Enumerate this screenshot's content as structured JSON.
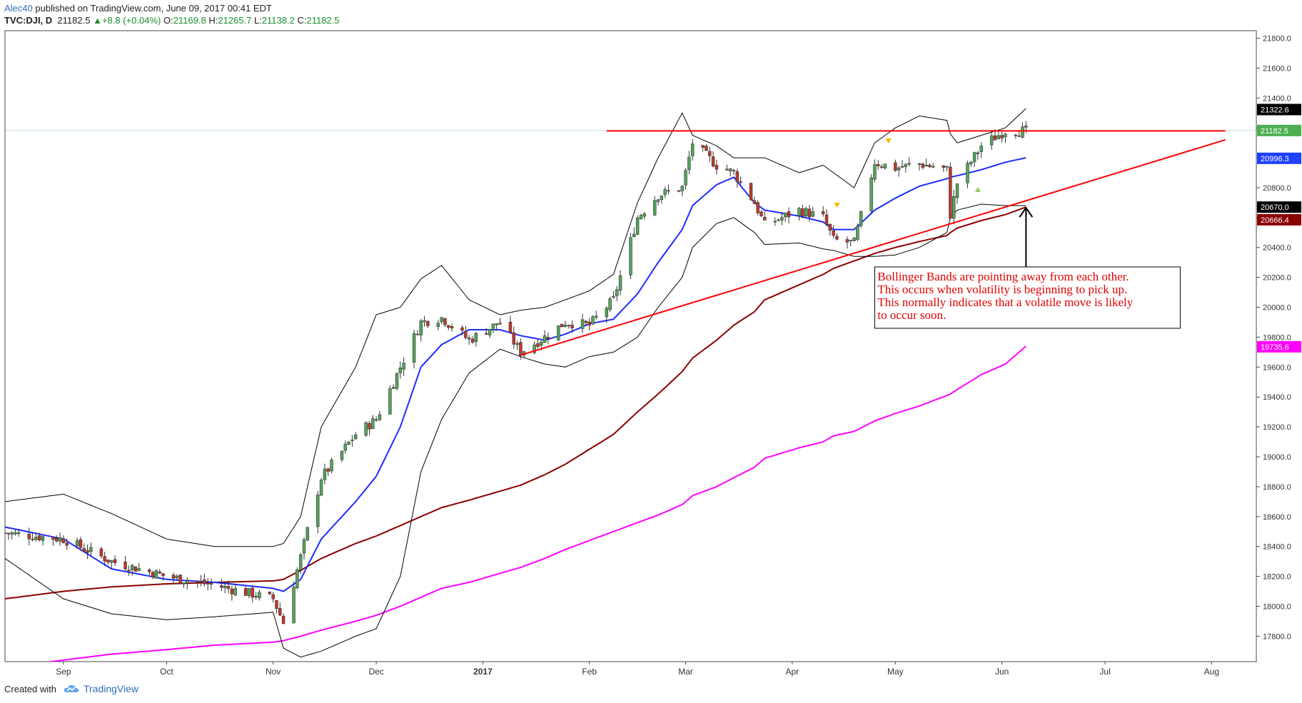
{
  "header": {
    "user": "Alec40",
    "published": "published on TradingView.com, June 09, 2017 00:41 EDT",
    "symbol": "TVC:DJI, D",
    "last": "21182.5",
    "arrow": "▲",
    "change": "+8.8 (+0.04%)",
    "o_label": "O:",
    "o": "21169.8",
    "h_label": "H:",
    "h": "21265.7",
    "l_label": "L:",
    "l": "21138.2",
    "c_label": "C:",
    "c": "21182.5"
  },
  "footer": {
    "created": "Created with",
    "brand": "TradingView"
  },
  "chart_data": {
    "type": "candlestick",
    "y_axis": {
      "min": 17630,
      "max": 21850,
      "ticks": [
        17800,
        18000,
        18200,
        18400,
        18600,
        18800,
        19000,
        19200,
        19400,
        19600,
        19800,
        20000,
        20200,
        20400,
        20600,
        20800,
        21000,
        21200,
        21400,
        21600,
        21800
      ],
      "tick_labels": [
        "17800.0",
        "18000.0",
        "18200.0",
        "18400.0",
        "18600.0",
        "18800.0",
        "19000.0",
        "19200.0",
        "19400.0",
        "19600.0",
        "19800.0",
        "20000.0",
        "20200.0",
        "20400.0",
        "20600.0",
        "20800.0",
        "21000.0",
        "21200.0",
        "21400.0",
        "21600.0",
        "21800.0"
      ]
    },
    "x_axis": {
      "labels": [
        "Sep",
        "Oct",
        "Nov",
        "Dec",
        "2017",
        "Feb",
        "Mar",
        "Apr",
        "May",
        "Jun",
        "Jul",
        "Aug"
      ],
      "label_dates": [
        "2016-09-01",
        "2016-10-01",
        "2016-11-01",
        "2016-12-01",
        "2017-01-01",
        "2017-02-01",
        "2017-03-01",
        "2017-04-01",
        "2017-05-01",
        "2017-06-01",
        "2017-07-01",
        "2017-08-01"
      ]
    },
    "price_labels": [
      {
        "value": 21322.6,
        "text": "21322.6",
        "color": "#000000"
      },
      {
        "value": 21182.5,
        "text": "21182.5",
        "color": "#4caf50"
      },
      {
        "value": 20996.3,
        "text": "20996.3",
        "color": "#1e40ff"
      },
      {
        "value": 20670.0,
        "text": "20670.0",
        "color": "#000000"
      },
      {
        "value": 20666.4,
        "text": "20666.4",
        "color": "#8b0000"
      },
      {
        "value": 19735.6,
        "text": "19735.6",
        "color": "#ff00ff"
      }
    ],
    "last_price": 21182.5,
    "resistance": {
      "start": "2017-02-06",
      "end": "2017-08-05",
      "value": 21180
    },
    "trendline": {
      "start": [
        "2017-01-12",
        19680
      ],
      "end": [
        "2017-08-05",
        21120
      ]
    },
    "annotation": {
      "lines": [
        "Bollinger Bands are pointing away from each other.",
        "This occurs when volatility is beginning to pick up.",
        "This normally indicates that a volatile move is likely",
        "to occur soon."
      ],
      "box_at": [
        "2017-04-25",
        20270
      ],
      "arrow_from": [
        "2017-06-08",
        20030
      ],
      "arrow_to": [
        "2017-06-08",
        20670
      ]
    },
    "anchors": {
      "dates": [
        "2016-08-01",
        "2016-08-15",
        "2016-09-01",
        "2016-09-15",
        "2016-10-01",
        "2016-10-15",
        "2016-11-01",
        "2016-11-04",
        "2016-11-09",
        "2016-11-15",
        "2016-11-25",
        "2016-12-01",
        "2016-12-08",
        "2016-12-14",
        "2016-12-20",
        "2016-12-28",
        "2017-01-06",
        "2017-01-12",
        "2017-01-19",
        "2017-01-25",
        "2017-02-01",
        "2017-02-08",
        "2017-02-15",
        "2017-02-21",
        "2017-02-28",
        "2017-03-03",
        "2017-03-10",
        "2017-03-15",
        "2017-03-21",
        "2017-03-24",
        "2017-04-03",
        "2017-04-10",
        "2017-04-13",
        "2017-04-19",
        "2017-04-25",
        "2017-05-01",
        "2017-05-08",
        "2017-05-16",
        "2017-05-17",
        "2017-05-19",
        "2017-05-26",
        "2017-06-02",
        "2017-06-08"
      ],
      "close": [
        18550,
        18490,
        18450,
        18300,
        18200,
        18140,
        18050,
        17890,
        18330,
        18860,
        19150,
        19250,
        19600,
        19900,
        19930,
        19780,
        19900,
        19700,
        19800,
        19900,
        19880,
        20050,
        20600,
        20750,
        20800,
        21100,
        20950,
        20900,
        20700,
        20550,
        20650,
        20600,
        20450,
        20430,
        20970,
        20930,
        20960,
        20920,
        20620,
        20830,
        21080,
        21180,
        21180
      ],
      "bb_mid": [
        18480,
        18530,
        18450,
        18250,
        18180,
        18160,
        18120,
        18100,
        18180,
        18450,
        18700,
        18870,
        19200,
        19600,
        19750,
        19850,
        19850,
        19810,
        19780,
        19820,
        19890,
        19920,
        20090,
        20300,
        20520,
        20680,
        20820,
        20870,
        20700,
        20650,
        20610,
        20570,
        20520,
        20520,
        20650,
        20730,
        20810,
        20860,
        20870,
        20880,
        20920,
        20970,
        21000
      ],
      "bb_up": [
        18760,
        18700,
        18750,
        18620,
        18450,
        18400,
        18400,
        18420,
        18600,
        19200,
        19600,
        19950,
        20000,
        20190,
        20280,
        20050,
        19950,
        19980,
        20000,
        20050,
        20110,
        20220,
        20700,
        21000,
        21300,
        21150,
        21080,
        21000,
        21000,
        21000,
        20900,
        20950,
        20900,
        20800,
        21100,
        21200,
        21280,
        21250,
        21160,
        21100,
        21150,
        21200,
        21330
      ],
      "bb_dn": [
        18300,
        18320,
        18050,
        17950,
        17910,
        17930,
        17960,
        17720,
        17660,
        17700,
        17800,
        17850,
        18200,
        18900,
        19250,
        19560,
        19720,
        19670,
        19620,
        19600,
        19670,
        19700,
        19800,
        20000,
        20200,
        20400,
        20560,
        20600,
        20500,
        20420,
        20430,
        20390,
        20380,
        20340,
        20340,
        20350,
        20400,
        20500,
        20600,
        20650,
        20690,
        20680,
        20680
      ],
      "ma100": [
        17990,
        18050,
        18100,
        18130,
        18150,
        18160,
        18170,
        18180,
        18240,
        18320,
        18420,
        18470,
        18540,
        18600,
        18660,
        18710,
        18770,
        18810,
        18880,
        18950,
        19050,
        19150,
        19300,
        19420,
        19570,
        19660,
        19780,
        19880,
        19970,
        20050,
        20150,
        20220,
        20260,
        20310,
        20360,
        20400,
        20440,
        20480,
        20500,
        20530,
        20580,
        20620,
        20670
      ],
      "ma200": [
        17560,
        17590,
        17640,
        17680,
        17710,
        17740,
        17760,
        17770,
        17800,
        17840,
        17900,
        17940,
        18000,
        18060,
        18120,
        18160,
        18220,
        18260,
        18320,
        18380,
        18440,
        18500,
        18560,
        18610,
        18680,
        18740,
        18800,
        18860,
        18930,
        18990,
        19060,
        19100,
        19140,
        19170,
        19240,
        19290,
        19340,
        19410,
        19420,
        19450,
        19550,
        19620,
        19740
      ]
    },
    "legend": "none",
    "grid": false
  },
  "colors": {
    "up": "#54a65b",
    "down": "#c0392b",
    "bb": "#000000",
    "bb_mid": "#1e2bff",
    "ma100": "#8b0000",
    "ma200": "#ff00ff",
    "resistance": "#ff0000",
    "trend": "#ff0000"
  }
}
